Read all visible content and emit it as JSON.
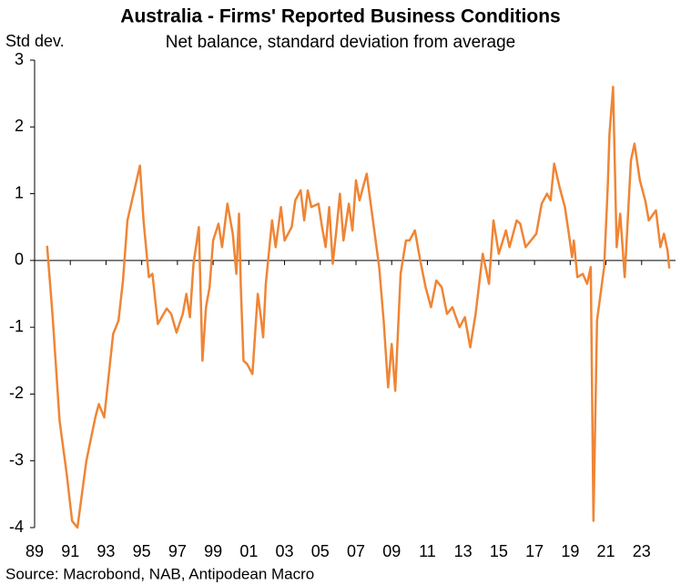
{
  "chart_data": {
    "type": "line",
    "title": "Australia - Firms' Reported Business Conditions",
    "subtitle": "Net balance, standard deviation from average",
    "y_label": "Std dev.",
    "source": "Source: Macrobond, NAB, Antipodean Macro",
    "x": [
      1989.7,
      1990.0,
      1990.4,
      1990.8,
      1991.1,
      1991.4,
      1991.9,
      1992.4,
      1992.6,
      1992.9,
      1993.4,
      1993.7,
      1993.95,
      1994.2,
      1994.5,
      1994.9,
      1995.1,
      1995.4,
      1995.6,
      1995.9,
      1996.4,
      1996.65,
      1996.95,
      1997.3,
      1997.5,
      1997.7,
      1997.9,
      1998.2,
      1998.4,
      1998.6,
      1998.8,
      1999.0,
      1999.3,
      1999.5,
      1999.8,
      2000.1,
      2000.3,
      2000.45,
      2000.55,
      2000.7,
      2000.9,
      2001.2,
      2001.5,
      2001.65,
      2001.8,
      2001.95,
      2002.3,
      2002.5,
      2002.8,
      2003.0,
      2003.4,
      2003.6,
      2003.9,
      2004.1,
      2004.3,
      2004.5,
      2004.9,
      2005.1,
      2005.3,
      2005.5,
      2005.7,
      2005.9,
      2006.1,
      2006.3,
      2006.6,
      2006.8,
      2007.0,
      2007.2,
      2007.6,
      2007.8,
      2008.0,
      2008.3,
      2008.55,
      2008.8,
      2009.0,
      2009.2,
      2009.5,
      2009.8,
      2010.0,
      2010.3,
      2010.6,
      2010.9,
      2011.2,
      2011.5,
      2011.8,
      2012.1,
      2012.4,
      2012.8,
      2013.1,
      2013.4,
      2013.7,
      2014.1,
      2014.45,
      2014.7,
      2015.0,
      2015.4,
      2015.6,
      2016.0,
      2016.2,
      2016.5,
      2016.8,
      2017.1,
      2017.4,
      2017.7,
      2017.9,
      2018.1,
      2018.4,
      2018.7,
      2018.95,
      2019.1,
      2019.2,
      2019.4,
      2019.7,
      2019.95,
      2020.15,
      2020.3,
      2020.5,
      2020.7,
      2020.9,
      2021.1,
      2021.2,
      2021.4,
      2021.6,
      2021.8,
      2022.05,
      2022.4,
      2022.6,
      2022.9,
      2023.2,
      2023.4,
      2023.8,
      2024.05,
      2024.25,
      2024.45,
      2024.55
    ],
    "series": [
      {
        "color": "#ef8535",
        "values": [
          0.22,
          -0.8,
          -2.4,
          -3.2,
          -3.9,
          -4.0,
          -3.0,
          -2.35,
          -2.15,
          -2.35,
          -1.1,
          -0.9,
          -0.3,
          0.6,
          0.95,
          1.42,
          0.6,
          -0.25,
          -0.2,
          -0.95,
          -0.72,
          -0.8,
          -1.08,
          -0.8,
          -0.5,
          -0.85,
          -0.05,
          0.5,
          -1.5,
          -0.7,
          -0.4,
          0.3,
          0.55,
          0.2,
          0.85,
          0.4,
          -0.2,
          0.7,
          -0.4,
          -1.5,
          -1.55,
          -1.7,
          -0.5,
          -0.8,
          -1.15,
          -0.35,
          0.6,
          0.2,
          0.8,
          0.3,
          0.5,
          0.9,
          1.05,
          0.6,
          1.05,
          0.8,
          0.85,
          0.5,
          0.2,
          0.8,
          -0.05,
          0.45,
          1.0,
          0.3,
          0.85,
          0.45,
          1.2,
          0.9,
          1.3,
          0.9,
          0.5,
          -0.1,
          -0.9,
          -1.9,
          -1.25,
          -1.95,
          -0.2,
          0.3,
          0.3,
          0.45,
          0.0,
          -0.4,
          -0.7,
          -0.3,
          -0.4,
          -0.8,
          -0.7,
          -1.0,
          -0.85,
          -1.3,
          -0.8,
          0.1,
          -0.35,
          0.6,
          0.1,
          0.45,
          0.2,
          0.6,
          0.55,
          0.2,
          0.3,
          0.4,
          0.85,
          1.0,
          0.9,
          1.45,
          1.1,
          0.8,
          0.35,
          0.05,
          0.3,
          -0.25,
          -0.2,
          -0.35,
          -0.1,
          -3.9,
          -0.9,
          -0.5,
          -0.1,
          1.1,
          1.9,
          2.6,
          0.2,
          0.7,
          -0.25,
          1.5,
          1.75,
          1.2,
          0.9,
          0.6,
          0.75,
          0.2,
          0.4,
          0.15,
          -0.12
        ]
      }
    ],
    "xlim": [
      1989,
      2025
    ],
    "ylim": [
      -4,
      3
    ],
    "yticks": [
      -4,
      -3,
      -2,
      -1,
      0,
      1,
      2,
      3
    ],
    "xticks": [
      {
        "value": 1989,
        "label": "89"
      },
      {
        "value": 1991,
        "label": "91"
      },
      {
        "value": 1993,
        "label": "93"
      },
      {
        "value": 1995,
        "label": "95"
      },
      {
        "value": 1997,
        "label": "97"
      },
      {
        "value": 1999,
        "label": "99"
      },
      {
        "value": 2001,
        "label": "01"
      },
      {
        "value": 2003,
        "label": "03"
      },
      {
        "value": 2005,
        "label": "05"
      },
      {
        "value": 2007,
        "label": "07"
      },
      {
        "value": 2009,
        "label": "09"
      },
      {
        "value": 2011,
        "label": "11"
      },
      {
        "value": 2013,
        "label": "13"
      },
      {
        "value": 2015,
        "label": "15"
      },
      {
        "value": 2017,
        "label": "17"
      },
      {
        "value": 2019,
        "label": "19"
      },
      {
        "value": 2021,
        "label": "21"
      },
      {
        "value": 2023,
        "label": "23"
      }
    ]
  }
}
